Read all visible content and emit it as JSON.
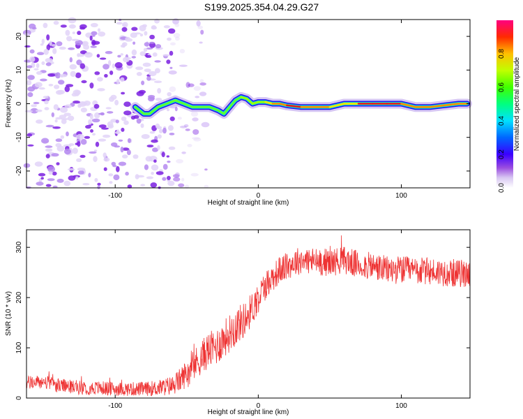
{
  "title": "S199.2025.354.04.29.G27",
  "chart_data": [
    {
      "type": "heatmap",
      "xlabel": "Height of straight line (km)",
      "ylabel": "Frequency (Hz)",
      "xlim": [
        -162,
        148
      ],
      "ylim": [
        -25,
        25
      ],
      "x_ticks": [
        -100,
        0,
        100
      ],
      "y_ticks": [
        20,
        10,
        0,
        -10,
        -20
      ],
      "noise_region_x": [
        -162,
        -60
      ],
      "ridge": {
        "x": [
          -86,
          -80,
          -76,
          -70,
          -64,
          -58,
          -52,
          -46,
          -40,
          -34,
          -28,
          -24,
          -20,
          -16,
          -12,
          -8,
          -4,
          0,
          5,
          10,
          15,
          20,
          30,
          40,
          50,
          60,
          70,
          80,
          90,
          100,
          110,
          120,
          130,
          140,
          146
        ],
        "y": [
          -1,
          -3,
          -3,
          -1,
          0,
          1,
          0,
          -1,
          -1,
          -1,
          -2,
          -3,
          -1,
          1,
          2,
          1.5,
          0,
          0.5,
          0.5,
          0,
          0,
          -0.5,
          -1,
          -1,
          -1,
          0,
          0,
          0,
          0,
          0,
          -1,
          -1,
          -0.5,
          0,
          0
        ],
        "amplitude": [
          0.1,
          0.15,
          0.3,
          0.4,
          0.35,
          0.3,
          0.2,
          0.25,
          0.3,
          0.35,
          0.3,
          0.2,
          0.3,
          0.4,
          0.5,
          0.6,
          0.55,
          0.6,
          0.7,
          0.8,
          0.85,
          0.95,
          0.95,
          0.9,
          0.85,
          0.7,
          0.95,
          1.0,
          1.0,
          1.0,
          0.8,
          0.85,
          0.8,
          0.85,
          0.9
        ]
      },
      "colorbar": {
        "label": "Normalized spectral amplitude",
        "ticks": [
          "0.0",
          "0.2",
          "0.4",
          "0.6",
          "0.8"
        ],
        "range": [
          0,
          1
        ]
      }
    },
    {
      "type": "line",
      "xlabel": "Height of straight line (km)",
      "ylabel": "SNR (10 * v/v)",
      "xlim": [
        -162,
        148
      ],
      "ylim": [
        0,
        335
      ],
      "x_ticks": [
        -100,
        0,
        100
      ],
      "y_ticks": [
        0,
        100,
        200,
        300
      ],
      "color": "#ee3333",
      "series": [
        {
          "name": "SNR",
          "x": [
            -162,
            -150,
            -140,
            -130,
            -120,
            -110,
            -100,
            -90,
            -80,
            -70,
            -60,
            -55,
            -50,
            -45,
            -40,
            -35,
            -30,
            -25,
            -20,
            -15,
            -10,
            -5,
            0,
            5,
            10,
            15,
            20,
            25,
            30,
            40,
            50,
            60,
            70,
            80,
            90,
            100,
            110,
            120,
            130,
            140,
            148
          ],
          "y": [
            30,
            32,
            25,
            22,
            20,
            20,
            18,
            18,
            18,
            20,
            25,
            35,
            50,
            65,
            80,
            95,
            100,
            115,
            130,
            145,
            155,
            175,
            200,
            225,
            240,
            255,
            262,
            270,
            275,
            272,
            270,
            275,
            265,
            262,
            255,
            255,
            253,
            252,
            250,
            248,
            248
          ],
          "noise_amplitude": [
            14,
            14,
            14,
            14,
            14,
            14,
            14,
            14,
            14,
            16,
            20,
            24,
            28,
            32,
            34,
            36,
            38,
            38,
            38,
            38,
            36,
            34,
            32,
            30,
            28,
            28,
            28,
            28,
            28,
            28,
            28,
            28,
            28,
            28,
            28,
            28,
            28,
            28,
            28,
            28,
            28
          ]
        }
      ]
    }
  ]
}
